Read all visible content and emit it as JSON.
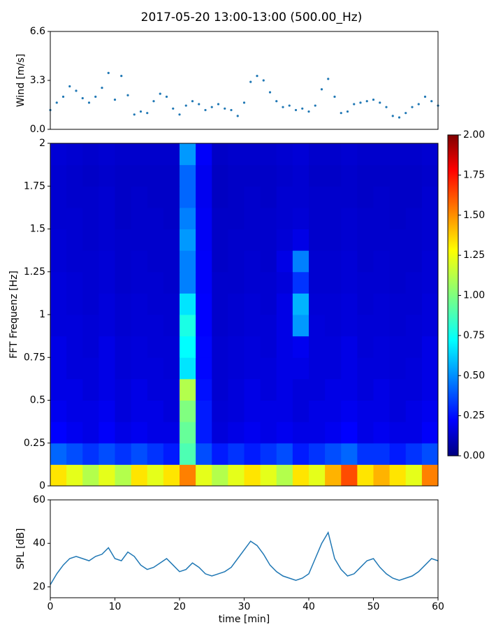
{
  "chart_data": [
    {
      "type": "scatter",
      "title": "2017-05-20 13:00-13:00 (500.00_Hz)",
      "ylabel": "Wind [m/s]",
      "color": "#1f77b4",
      "x": [
        0,
        1,
        2,
        3,
        4,
        5,
        6,
        7,
        8,
        9,
        10,
        11,
        12,
        13,
        14,
        15,
        16,
        17,
        18,
        19,
        20,
        21,
        22,
        23,
        24,
        25,
        26,
        27,
        28,
        29,
        30,
        31,
        32,
        33,
        34,
        35,
        36,
        37,
        38,
        39,
        40,
        41,
        42,
        43,
        44,
        45,
        46,
        47,
        48,
        49,
        50,
        51,
        52,
        53,
        54,
        55,
        56,
        57,
        58,
        59,
        60
      ],
      "values": [
        1.3,
        1.8,
        2.2,
        2.9,
        2.6,
        2.1,
        1.8,
        2.2,
        2.8,
        3.8,
        2.0,
        3.6,
        2.3,
        1.0,
        1.2,
        1.1,
        1.9,
        2.4,
        2.2,
        1.4,
        1.0,
        1.6,
        1.9,
        1.7,
        1.3,
        1.5,
        1.7,
        1.4,
        1.3,
        0.9,
        1.8,
        3.2,
        3.6,
        3.3,
        2.5,
        1.9,
        1.5,
        1.6,
        1.3,
        1.4,
        1.2,
        1.6,
        2.7,
        3.4,
        2.2,
        1.1,
        1.2,
        1.7,
        1.8,
        1.9,
        2.0,
        1.8,
        1.5,
        0.9,
        0.8,
        1.1,
        1.5,
        1.7,
        2.2,
        1.9,
        1.6
      ],
      "xlim": [
        0,
        60
      ],
      "ylim": [
        0,
        6.6
      ],
      "yticks": [
        {
          "value": 0,
          "label": "0.0"
        },
        3.3,
        6.6
      ]
    },
    {
      "type": "heatmap",
      "ylabel": "FFT Frequenz [Hz]",
      "colormap": "jet",
      "xbins": [
        0,
        2.5,
        5,
        7.5,
        10,
        12.5,
        15,
        17.5,
        20,
        22.5,
        25,
        27.5,
        30,
        32.5,
        35,
        37.5,
        40,
        42.5,
        45,
        47.5,
        50,
        52.5,
        55,
        57.5,
        60
      ],
      "ybins": [
        0,
        0.125,
        0.25,
        0.375,
        0.5,
        0.625,
        0.75,
        0.875,
        1,
        1.125,
        1.25,
        1.375,
        1.5,
        1.625,
        1.75,
        1.875,
        2
      ],
      "z": [
        [
          1.3,
          1.2,
          1.1,
          1.2,
          1.1,
          1.3,
          1.2,
          1.3,
          1.5,
          1.2,
          1.1,
          1.2,
          1.3,
          1.2,
          1.1,
          1.3,
          1.2,
          1.4,
          1.6,
          1.3,
          1.4,
          1.3,
          1.2,
          1.5
        ],
        [
          0.45,
          0.4,
          0.35,
          0.4,
          0.35,
          0.4,
          0.35,
          0.3,
          0.9,
          0.4,
          0.3,
          0.35,
          0.3,
          0.35,
          0.4,
          0.3,
          0.35,
          0.4,
          0.45,
          0.35,
          0.35,
          0.3,
          0.35,
          0.4
        ],
        [
          0.25,
          0.22,
          0.2,
          0.24,
          0.2,
          0.22,
          0.2,
          0.2,
          0.95,
          0.3,
          0.18,
          0.2,
          0.22,
          0.2,
          0.22,
          0.2,
          0.2,
          0.22,
          0.25,
          0.2,
          0.22,
          0.2,
          0.2,
          0.24
        ],
        [
          0.22,
          0.2,
          0.2,
          0.22,
          0.18,
          0.2,
          0.2,
          0.18,
          1.0,
          0.3,
          0.17,
          0.18,
          0.2,
          0.2,
          0.2,
          0.18,
          0.2,
          0.2,
          0.22,
          0.2,
          0.2,
          0.18,
          0.2,
          0.22
        ],
        [
          0.2,
          0.2,
          0.18,
          0.2,
          0.18,
          0.2,
          0.18,
          0.18,
          1.1,
          0.28,
          0.16,
          0.18,
          0.2,
          0.18,
          0.2,
          0.18,
          0.18,
          0.2,
          0.2,
          0.18,
          0.2,
          0.18,
          0.18,
          0.2
        ],
        [
          0.2,
          0.18,
          0.18,
          0.2,
          0.17,
          0.18,
          0.18,
          0.17,
          0.7,
          0.26,
          0.16,
          0.17,
          0.18,
          0.18,
          0.2,
          0.2,
          0.18,
          0.18,
          0.2,
          0.18,
          0.18,
          0.17,
          0.18,
          0.2
        ],
        [
          0.2,
          0.18,
          0.17,
          0.2,
          0.17,
          0.18,
          0.17,
          0.17,
          0.75,
          0.26,
          0.16,
          0.17,
          0.18,
          0.17,
          0.2,
          0.22,
          0.18,
          0.18,
          0.2,
          0.17,
          0.18,
          0.17,
          0.17,
          0.2
        ],
        [
          0.18,
          0.18,
          0.17,
          0.18,
          0.16,
          0.17,
          0.17,
          0.16,
          0.8,
          0.25,
          0.15,
          0.16,
          0.17,
          0.17,
          0.2,
          0.55,
          0.18,
          0.17,
          0.18,
          0.17,
          0.17,
          0.16,
          0.17,
          0.18
        ],
        [
          0.18,
          0.17,
          0.16,
          0.18,
          0.16,
          0.17,
          0.16,
          0.16,
          0.7,
          0.25,
          0.15,
          0.16,
          0.17,
          0.16,
          0.2,
          0.6,
          0.17,
          0.17,
          0.18,
          0.16,
          0.17,
          0.16,
          0.16,
          0.18
        ],
        [
          0.18,
          0.17,
          0.16,
          0.17,
          0.15,
          0.16,
          0.16,
          0.15,
          0.5,
          0.24,
          0.15,
          0.15,
          0.16,
          0.16,
          0.18,
          0.35,
          0.16,
          0.16,
          0.17,
          0.16,
          0.16,
          0.15,
          0.16,
          0.17
        ],
        [
          0.17,
          0.16,
          0.16,
          0.17,
          0.15,
          0.16,
          0.15,
          0.15,
          0.5,
          0.24,
          0.14,
          0.15,
          0.16,
          0.15,
          0.2,
          0.5,
          0.16,
          0.16,
          0.17,
          0.15,
          0.16,
          0.15,
          0.15,
          0.17
        ],
        [
          0.17,
          0.16,
          0.15,
          0.16,
          0.15,
          0.15,
          0.15,
          0.15,
          0.55,
          0.23,
          0.14,
          0.15,
          0.15,
          0.15,
          0.17,
          0.2,
          0.15,
          0.15,
          0.16,
          0.15,
          0.15,
          0.15,
          0.15,
          0.16
        ],
        [
          0.16,
          0.16,
          0.15,
          0.16,
          0.14,
          0.15,
          0.15,
          0.14,
          0.5,
          0.23,
          0.14,
          0.14,
          0.15,
          0.15,
          0.16,
          0.17,
          0.15,
          0.15,
          0.16,
          0.15,
          0.15,
          0.14,
          0.15,
          0.16
        ],
        [
          0.16,
          0.15,
          0.15,
          0.16,
          0.14,
          0.15,
          0.14,
          0.14,
          0.45,
          0.22,
          0.13,
          0.14,
          0.15,
          0.14,
          0.16,
          0.16,
          0.15,
          0.15,
          0.15,
          0.14,
          0.15,
          0.14,
          0.14,
          0.16
        ],
        [
          0.16,
          0.15,
          0.14,
          0.15,
          0.14,
          0.14,
          0.14,
          0.14,
          0.45,
          0.22,
          0.13,
          0.14,
          0.14,
          0.14,
          0.15,
          0.16,
          0.14,
          0.14,
          0.15,
          0.14,
          0.14,
          0.14,
          0.14,
          0.15
        ],
        [
          0.17,
          0.16,
          0.15,
          0.16,
          0.15,
          0.15,
          0.15,
          0.15,
          0.55,
          0.24,
          0.14,
          0.15,
          0.15,
          0.15,
          0.16,
          0.17,
          0.15,
          0.15,
          0.16,
          0.15,
          0.15,
          0.15,
          0.15,
          0.16
        ]
      ],
      "xlim": [
        0,
        60
      ],
      "ylim": [
        0,
        2
      ],
      "yticks": [
        0,
        0.25,
        0.5,
        0.75,
        1,
        1.25,
        1.5,
        1.75,
        2
      ],
      "clim": [
        0,
        2
      ],
      "cticks": [
        {
          "value": 0,
          "label": "0.00"
        },
        {
          "value": 0.25,
          "label": "0.25"
        },
        {
          "value": 0.5,
          "label": "0.50"
        },
        {
          "value": 0.75,
          "label": "0.75"
        },
        {
          "value": 1,
          "label": "1.00"
        },
        {
          "value": 1.25,
          "label": "1.25"
        },
        {
          "value": 1.5,
          "label": "1.50"
        },
        {
          "value": 1.75,
          "label": "1.75"
        },
        {
          "value": 2,
          "label": "2.00"
        }
      ]
    },
    {
      "type": "line",
      "ylabel": "SPL [dB]",
      "xlabel": "time [min]",
      "color": "#1f77b4",
      "x": [
        0,
        1,
        2,
        3,
        4,
        5,
        6,
        7,
        8,
        9,
        10,
        11,
        12,
        13,
        14,
        15,
        16,
        17,
        18,
        19,
        20,
        21,
        22,
        23,
        24,
        25,
        26,
        27,
        28,
        29,
        30,
        31,
        32,
        33,
        34,
        35,
        36,
        37,
        38,
        39,
        40,
        41,
        42,
        43,
        44,
        45,
        46,
        47,
        48,
        49,
        50,
        51,
        52,
        53,
        54,
        55,
        56,
        57,
        58,
        59,
        60
      ],
      "values": [
        21,
        26,
        30,
        33,
        34,
        33,
        32,
        34,
        35,
        38,
        33,
        32,
        36,
        34,
        30,
        28,
        29,
        31,
        33,
        30,
        27,
        28,
        31,
        29,
        26,
        25,
        26,
        27,
        29,
        33,
        37,
        41,
        39,
        35,
        30,
        27,
        25,
        24,
        23,
        24,
        26,
        33,
        40,
        45,
        33,
        28,
        25,
        26,
        29,
        32,
        33,
        29,
        26,
        24,
        23,
        24,
        25,
        27,
        30,
        33,
        32
      ],
      "xlim": [
        0,
        60
      ],
      "ylim": [
        15,
        60
      ],
      "xticks": [
        0,
        10,
        20,
        30,
        40,
        50,
        60
      ],
      "yticks": [
        20,
        40,
        60
      ]
    }
  ]
}
